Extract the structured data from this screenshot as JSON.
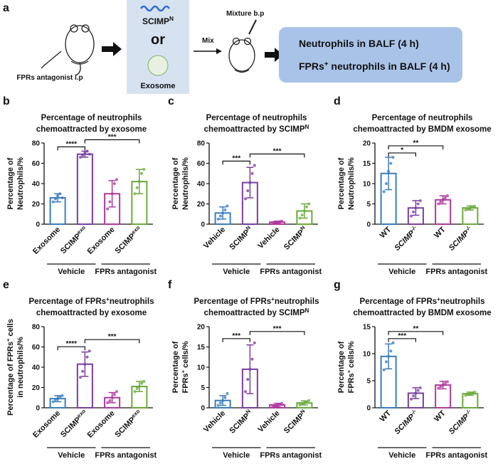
{
  "schematic": {
    "letter": "a",
    "step1": "FPRs antagonist i.p",
    "option1": [
      "SCIMP",
      "N"
    ],
    "or": "or",
    "option2": "Exosome",
    "mix": "Mix",
    "step2": "Mixture b.p",
    "readouts": [
      [
        "Neutrophils in BALF (4 h)"
      ],
      [
        "FPRs",
        "+",
        " neutrophils in BALF (4 h)"
      ]
    ]
  },
  "chart_data": [
    {
      "type": "bar",
      "letter": "b",
      "title": [
        [
          "Percentage of neutrophils"
        ],
        [
          "chemoattracted by exosome"
        ]
      ],
      "ylabel": [
        [
          "Percentage of"
        ],
        [
          "Neutrophils/%"
        ]
      ],
      "categories": [
        [
          "Exosome"
        ],
        [
          "SCIMP",
          "exo"
        ],
        [
          "Exosome"
        ],
        [
          "SCIMP",
          "exo"
        ]
      ],
      "italic_categories": [
        false,
        false,
        false,
        false
      ],
      "groups": [
        "Vehicle",
        "FPRs antagonist"
      ],
      "colors": [
        "#3a7dbf",
        "#7b3fa0",
        "#b0399e",
        "#6aaa3a"
      ],
      "values": [
        26,
        69,
        30,
        42
      ],
      "errors": [
        4,
        3,
        13,
        12
      ],
      "points": [
        [
          22,
          25,
          28,
          30,
          26
        ],
        [
          66,
          68,
          70,
          72,
          69
        ],
        [
          15,
          22,
          30,
          40,
          44
        ],
        [
          30,
          36,
          42,
          50,
          54
        ]
      ],
      "ylim": [
        0,
        80
      ],
      "yticks": [
        0,
        20,
        40,
        60,
        80
      ],
      "annotations": [
        {
          "from": 0,
          "to": 1,
          "label": "****"
        },
        {
          "from": 1,
          "to": 3,
          "label": "***"
        }
      ]
    },
    {
      "type": "bar",
      "letter": "c",
      "title": [
        [
          "Percentage of neutrophils"
        ],
        [
          "chemoattracted by SCIMP",
          "N"
        ]
      ],
      "ylabel": [
        [
          "Percentage of"
        ],
        [
          "Neutrophils/%"
        ]
      ],
      "categories": [
        [
          "Vehicle"
        ],
        [
          "SCIMP",
          "N"
        ],
        [
          "Vehicle"
        ],
        [
          "SCIMP",
          "N"
        ]
      ],
      "italic_categories": [
        false,
        false,
        false,
        false
      ],
      "groups": [
        "Vehicle",
        "FPRs antagonist"
      ],
      "colors": [
        "#3a7dbf",
        "#7b3fa0",
        "#b0399e",
        "#6aaa3a"
      ],
      "values": [
        11,
        41,
        2,
        13
      ],
      "errors": [
        6,
        15,
        1,
        7
      ],
      "points": [
        [
          5,
          8,
          11,
          14,
          18
        ],
        [
          25,
          33,
          41,
          50,
          58
        ],
        [
          1,
          1.5,
          2,
          2.5,
          3
        ],
        [
          6,
          9,
          13,
          17,
          20
        ]
      ],
      "ylim": [
        0,
        80
      ],
      "yticks": [
        0,
        20,
        40,
        60,
        80
      ],
      "annotations": [
        {
          "from": 0,
          "to": 1,
          "label": "***"
        },
        {
          "from": 1,
          "to": 3,
          "label": "***"
        }
      ]
    },
    {
      "type": "bar",
      "letter": "d",
      "title": [
        [
          "Percentage of neutrophils"
        ],
        [
          "chemoattracted by BMDM exosome"
        ]
      ],
      "ylabel": [
        [
          "Percentage of"
        ],
        [
          "Neutrophils/%"
        ]
      ],
      "categories": [
        [
          "WT"
        ],
        [
          "SCIMP",
          "-/-"
        ],
        [
          "WT"
        ],
        [
          "SCIMP",
          "-/-"
        ]
      ],
      "italic_categories": [
        false,
        true,
        false,
        true
      ],
      "groups": [
        "Vehicle",
        "FPRs antagonist"
      ],
      "colors": [
        "#3a7dbf",
        "#7b3fa0",
        "#b0399e",
        "#6aaa3a"
      ],
      "values": [
        12.5,
        4,
        6,
        4
      ],
      "errors": [
        4,
        1.8,
        1,
        0.5
      ],
      "points": [
        [
          8,
          10,
          13,
          15,
          16.5
        ],
        [
          2,
          3,
          4,
          5,
          5.8
        ],
        [
          5,
          5.5,
          6,
          6.5,
          7
        ],
        [
          3.5,
          3.8,
          4,
          4.2,
          4.4
        ]
      ],
      "ylim": [
        0,
        20
      ],
      "yticks": [
        0,
        5,
        10,
        15,
        20
      ],
      "annotations": [
        {
          "from": 0,
          "to": 1,
          "label": "*"
        },
        {
          "from": 0,
          "to": 2,
          "label": "**"
        }
      ]
    },
    {
      "type": "bar",
      "letter": "e",
      "title": [
        [
          "Percentage of FPRs",
          "+",
          "neutrophils"
        ],
        [
          "chemoattracted by exosome"
        ]
      ],
      "ylabel": [
        [
          "Percentage of FPRs",
          "+",
          " cells"
        ],
        [
          "in neutrophils/%"
        ]
      ],
      "categories": [
        [
          "Exosome"
        ],
        [
          "SCIMP",
          "exo"
        ],
        [
          "Exosome"
        ],
        [
          "SCIMP",
          "exo"
        ]
      ],
      "italic_categories": [
        false,
        false,
        false,
        false
      ],
      "groups": [
        "Vehicle",
        "FPRs antagonist"
      ],
      "colors": [
        "#3a7dbf",
        "#7b3fa0",
        "#b0399e",
        "#6aaa3a"
      ],
      "values": [
        9,
        43,
        10,
        21
      ],
      "errors": [
        3,
        12,
        5,
        5
      ],
      "points": [
        [
          6,
          8,
          9,
          11,
          12
        ],
        [
          30,
          36,
          43,
          50,
          56
        ],
        [
          5,
          7,
          10,
          13,
          16
        ],
        [
          16,
          19,
          21,
          24,
          26
        ]
      ],
      "ylim": [
        0,
        80
      ],
      "yticks": [
        0,
        20,
        40,
        60,
        80
      ],
      "annotations": [
        {
          "from": 0,
          "to": 1,
          "label": "****"
        },
        {
          "from": 1,
          "to": 3,
          "label": "***"
        }
      ]
    },
    {
      "type": "bar",
      "letter": "f",
      "title": [
        [
          "Percentage of FPRs",
          "+",
          "neutrophils"
        ],
        [
          "chemoattracted by SCIMP",
          "N"
        ]
      ],
      "ylabel": [
        [
          "Percentage of"
        ],
        [
          "FPRs",
          "+",
          " cells/%"
        ]
      ],
      "categories": [
        [
          "Vehicle"
        ],
        [
          "SCIMP",
          "N"
        ],
        [
          "Vehicle"
        ],
        [
          "SCIMP",
          "N"
        ]
      ],
      "italic_categories": [
        false,
        false,
        false,
        false
      ],
      "groups": [
        "Vehicle",
        "FPRs antagonist"
      ],
      "colors": [
        "#3a7dbf",
        "#7b3fa0",
        "#b0399e",
        "#6aaa3a"
      ],
      "values": [
        1.8,
        9.5,
        0.7,
        1.2
      ],
      "errors": [
        1.2,
        6,
        0.4,
        0.5
      ],
      "points": [
        [
          0.6,
          1.2,
          1.8,
          2.5,
          3.5
        ],
        [
          4,
          7,
          9.5,
          12,
          16
        ],
        [
          0.3,
          0.5,
          0.7,
          0.9,
          1.1
        ],
        [
          0.7,
          1,
          1.2,
          1.5,
          1.8
        ]
      ],
      "ylim": [
        0,
        20
      ],
      "yticks": [
        0,
        5,
        10,
        15,
        20
      ],
      "annotations": [
        {
          "from": 0,
          "to": 1,
          "label": "***"
        },
        {
          "from": 1,
          "to": 3,
          "label": "***"
        }
      ]
    },
    {
      "type": "bar",
      "letter": "g",
      "title": [
        [
          "Percentage of FPRs",
          "+",
          "neutrophils"
        ],
        [
          "chemoattracted by BMDM exosome"
        ]
      ],
      "ylabel": [
        [
          "Percentage of"
        ],
        [
          "FPRs",
          "+",
          " cells/%"
        ]
      ],
      "categories": [
        [
          "WT"
        ],
        [
          "SCIMP",
          "-/-"
        ],
        [
          "WT"
        ],
        [
          "SCIMP",
          "-/-"
        ]
      ],
      "italic_categories": [
        false,
        true,
        false,
        true
      ],
      "groups": [
        "Vehicle",
        "FPRs antagonist"
      ],
      "colors": [
        "#3a7dbf",
        "#7b3fa0",
        "#b0399e",
        "#6aaa3a"
      ],
      "values": [
        9.5,
        2.7,
        4.2,
        2.6
      ],
      "errors": [
        2.3,
        1,
        0.7,
        0.3
      ],
      "points": [
        [
          7,
          8.5,
          9.5,
          10.5,
          12
        ],
        [
          1.6,
          2.2,
          2.7,
          3.2,
          3.7
        ],
        [
          3.6,
          3.9,
          4.2,
          4.5,
          4.8
        ],
        [
          2.3,
          2.5,
          2.6,
          2.7,
          2.9
        ]
      ],
      "ylim": [
        0,
        15
      ],
      "yticks": [
        0,
        5,
        10,
        15
      ],
      "annotations": [
        {
          "from": 0,
          "to": 1,
          "label": "***"
        },
        {
          "from": 0,
          "to": 2,
          "label": "**"
        }
      ]
    }
  ]
}
